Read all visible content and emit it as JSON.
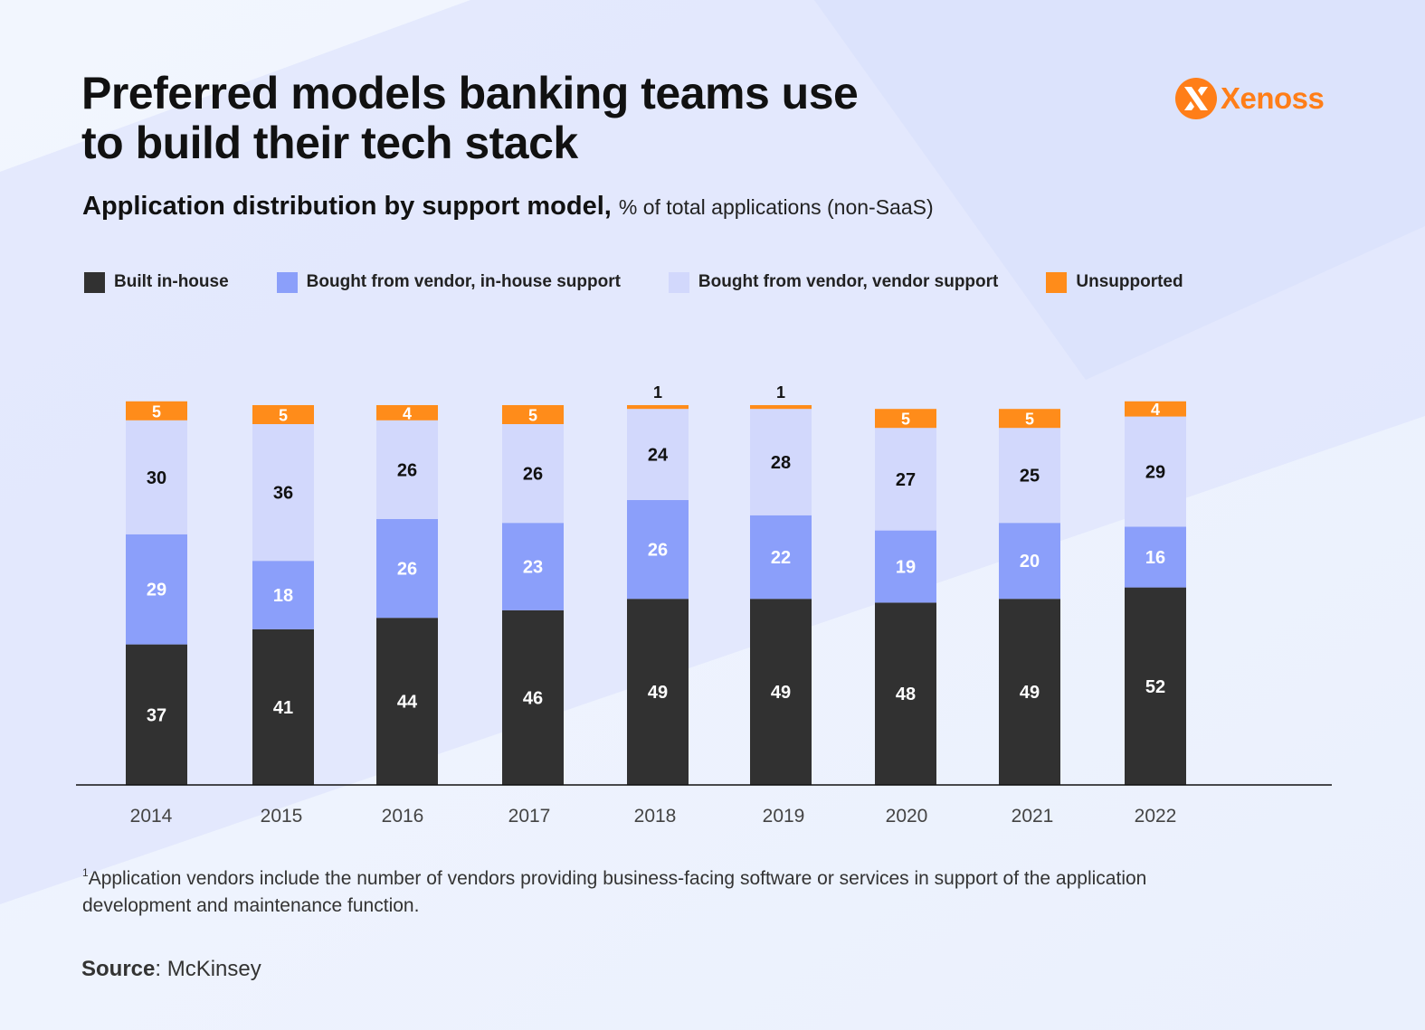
{
  "header": {
    "title": "Preferred models banking teams use\nto build their tech stack",
    "subtitle_bold": "Application distribution by support model,",
    "subtitle_light": "% of total applications (non-SaaS)"
  },
  "brand": {
    "name": "Xenoss",
    "icon": "xenoss-logo-icon",
    "color": "#ff7e18"
  },
  "legend": [
    {
      "label": "Built in-house",
      "color": "#313131"
    },
    {
      "label": "Bought from vendor, in-house support",
      "color": "#8b9ffa"
    },
    {
      "label": "Bought from vendor, vendor support",
      "color": "#d2d8fc"
    },
    {
      "label": "Unsupported",
      "color": "#ff8c1a"
    }
  ],
  "chart_data": {
    "type": "bar",
    "stacked": true,
    "title": "Application distribution by support model",
    "ylabel": "% of total applications (non-SaaS)",
    "xlabel": "",
    "categories": [
      "2014",
      "2015",
      "2016",
      "2017",
      "2018",
      "2019",
      "2020",
      "2021",
      "2022"
    ],
    "series": [
      {
        "name": "Built in-house",
        "color": "#313131",
        "label_color": "#ffffff",
        "values": [
          37,
          41,
          44,
          46,
          49,
          49,
          48,
          49,
          52
        ]
      },
      {
        "name": "Bought from vendor, in-house support",
        "color": "#8b9ffa",
        "label_color": "#ffffff",
        "values": [
          29,
          18,
          26,
          23,
          26,
          22,
          19,
          20,
          16
        ]
      },
      {
        "name": "Bought from vendor, vendor support",
        "color": "#d2d8fc",
        "label_color": "#111111",
        "values": [
          30,
          36,
          26,
          26,
          24,
          28,
          27,
          25,
          29
        ]
      },
      {
        "name": "Unsupported",
        "color": "#ff8c1a",
        "label_color": "#ffffff",
        "values": [
          5,
          5,
          4,
          5,
          1,
          1,
          5,
          5,
          4
        ]
      }
    ],
    "grid": false,
    "legend_position": "top-left"
  },
  "footnote": {
    "marker": "1",
    "text": "Application vendors include the number of vendors providing business-facing software or services in support of the application development and maintenance function."
  },
  "source": {
    "label": "Source",
    "value": ": McKinsey"
  }
}
